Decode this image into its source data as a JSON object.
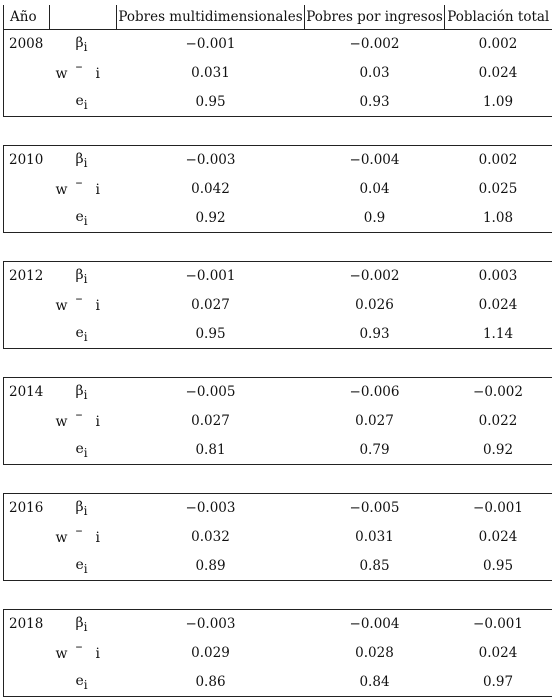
{
  "header": {
    "year": "Año",
    "sym": "",
    "col_a": "Pobres multidimensionales",
    "col_b": "Pobres por ingresos",
    "col_c": "Población total"
  },
  "symbols": {
    "beta": "β",
    "beta_sub": "i",
    "w": "w",
    "w_bar": "–",
    "w_sub": "i",
    "e": "e",
    "e_sub": "i"
  },
  "groups": [
    {
      "year": "2008",
      "beta": [
        "−0.001",
        "−0.002",
        "0.002"
      ],
      "w": [
        "0.031",
        "0.03",
        "0.024"
      ],
      "e": [
        "0.95",
        "0.93",
        "1.09"
      ]
    },
    {
      "year": "2010",
      "beta": [
        "−0.003",
        "−0.004",
        "0.002"
      ],
      "w": [
        "0.042",
        "0.04",
        "0.025"
      ],
      "e": [
        "0.92",
        "0.9",
        "1.08"
      ]
    },
    {
      "year": "2012",
      "beta": [
        "−0.001",
        "−0.002",
        "0.003"
      ],
      "w": [
        "0.027",
        "0.026",
        "0.024"
      ],
      "e": [
        "0.95",
        "0.93",
        "1.14"
      ]
    },
    {
      "year": "2014",
      "beta": [
        "−0.005",
        "−0.006",
        "−0.002"
      ],
      "w": [
        "0.027",
        "0.027",
        "0.022"
      ],
      "e": [
        "0.81",
        "0.79",
        "0.92"
      ]
    },
    {
      "year": "2016",
      "beta": [
        "−0.003",
        "−0.005",
        "−0.001"
      ],
      "w": [
        "0.032",
        "0.031",
        "0.024"
      ],
      "e": [
        "0.89",
        "0.85",
        "0.95"
      ]
    },
    {
      "year": "2018",
      "beta": [
        "−0.003",
        "−0.004",
        "−0.001"
      ],
      "w": [
        "0.029",
        "0.028",
        "0.024"
      ],
      "e": [
        "0.86",
        "0.84",
        "0.97"
      ]
    }
  ]
}
